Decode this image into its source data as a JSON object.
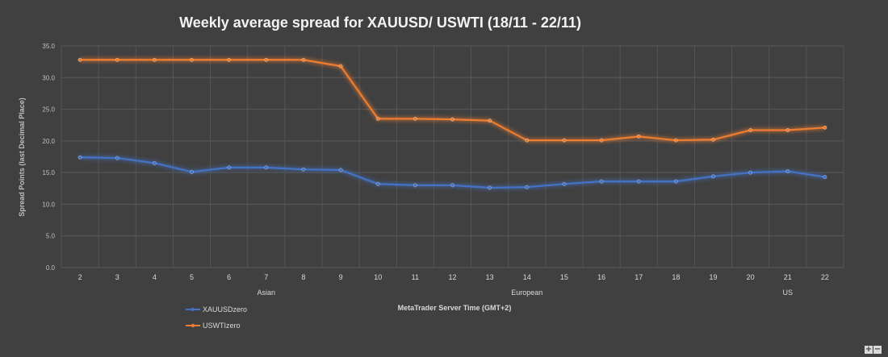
{
  "chart_data": {
    "type": "line",
    "title": "Weekly average spread for XAUUSD/ USWTI (18/11 - 22/11)",
    "xlabel": "MetaTrader Server Time (GMT+2)",
    "ylabel": "Spread Points  (last Decimal Place)",
    "ylim": [
      0,
      35
    ],
    "y_ticks": [
      "0.0",
      "5.0",
      "10.0",
      "15.0",
      "20.0",
      "25.0",
      "30.0",
      "35.0"
    ],
    "categories": [
      "2",
      "3",
      "4",
      "5",
      "6",
      "7",
      "8",
      "9",
      "10",
      "11",
      "12",
      "13",
      "14",
      "15",
      "16",
      "17",
      "18",
      "19",
      "20",
      "21",
      "22"
    ],
    "sessions": [
      {
        "label": "Asian",
        "center": 5
      },
      {
        "label": "European",
        "center": 12
      },
      {
        "label": "US",
        "center": 19
      }
    ],
    "grid": true,
    "legend_position": "bottom-left",
    "series": [
      {
        "name": "XAUUSDzero",
        "color": "#4472C4",
        "values": [
          17.4,
          17.3,
          16.5,
          15.1,
          15.8,
          15.8,
          15.5,
          15.4,
          13.2,
          13.0,
          13.0,
          12.6,
          12.7,
          13.2,
          13.6,
          13.6,
          13.6,
          14.4,
          15.0,
          15.2,
          14.3
        ]
      },
      {
        "name": "USWTIzero",
        "color": "#ED7D31",
        "values": [
          32.8,
          32.8,
          32.8,
          32.8,
          32.8,
          32.8,
          32.8,
          31.8,
          23.5,
          23.5,
          23.4,
          23.2,
          20.1,
          20.1,
          20.1,
          20.7,
          20.1,
          20.2,
          21.7,
          21.7,
          22.1
        ]
      }
    ]
  },
  "ui": {
    "zoom_in_label": "+",
    "zoom_out_label": "−"
  }
}
